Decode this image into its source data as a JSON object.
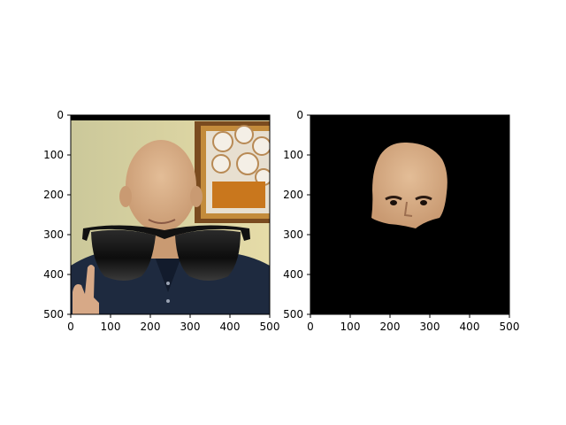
{
  "chart_data": [
    {
      "type": "image",
      "title": "",
      "xlabel": "",
      "ylabel": "",
      "xlim": [
        0,
        500
      ],
      "ylim": [
        500,
        0
      ],
      "y_axis_inverted": true,
      "grid": false,
      "x_ticks": [
        "0",
        "100",
        "200",
        "300",
        "400",
        "500"
      ],
      "y_ticks": [
        "0",
        "100",
        "200",
        "300",
        "400",
        "500"
      ],
      "content_description": "photograph of a bald man in a dark shirt wearing superimposed black sunglasses, raising a V hand sign; framed painting on the wall behind",
      "overlay": "black sunglasses over eyes",
      "background": "photo"
    },
    {
      "type": "image",
      "title": "",
      "xlabel": "",
      "ylabel": "",
      "xlim": [
        0,
        500
      ],
      "ylim": [
        500,
        0
      ],
      "y_axis_inverted": true,
      "grid": false,
      "x_ticks": [
        "0",
        "100",
        "200",
        "300",
        "400",
        "500"
      ],
      "y_ticks": [
        "0",
        "100",
        "200",
        "300",
        "400",
        "500"
      ],
      "content_description": "segmented face region of the same man isolated on a solid black background",
      "background": "#000000"
    }
  ],
  "colors": {
    "figure_background": "#ffffff",
    "axis": "#000000",
    "mask_background": "#000000",
    "sunglasses": "#111111",
    "skin": "#d9b08a",
    "wall": "#dcd6a2",
    "shirt": "#1e2a3f",
    "frame": "#b7832c"
  }
}
